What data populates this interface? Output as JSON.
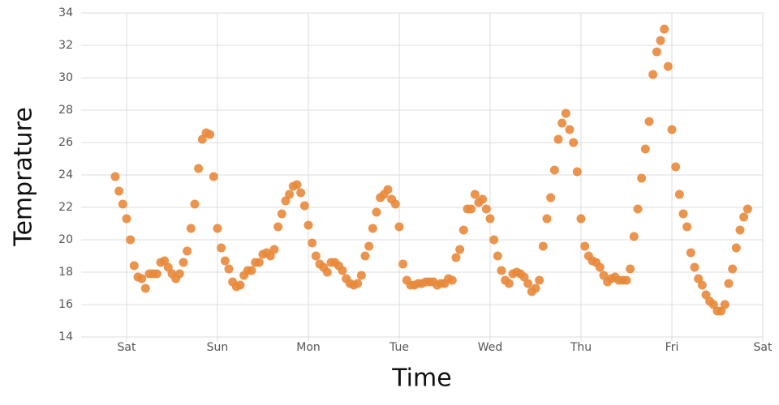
{
  "chart_data": {
    "type": "scatter",
    "x_label": "Time",
    "y_label": "Temprature",
    "xlim": [
      -12,
      168
    ],
    "ylim": [
      14,
      34
    ],
    "xticks": [
      {
        "value": 0,
        "label": "Sat"
      },
      {
        "value": 24,
        "label": "Sun"
      },
      {
        "value": 48,
        "label": "Mon"
      },
      {
        "value": 72,
        "label": "Tue"
      },
      {
        "value": 96,
        "label": "Wed"
      },
      {
        "value": 120,
        "label": "Thu"
      },
      {
        "value": 144,
        "label": "Fri"
      },
      {
        "value": 168,
        "label": "Sat"
      }
    ],
    "yticks": [
      14,
      16,
      18,
      20,
      22,
      24,
      26,
      28,
      30,
      32,
      34
    ],
    "grid": true,
    "color": "#e8883a",
    "x": [
      -3,
      -2,
      -1,
      0,
      1,
      2,
      3,
      4,
      5,
      6,
      7,
      8,
      9,
      10,
      11,
      12,
      13,
      14,
      15,
      16,
      17,
      18,
      19,
      20,
      21,
      22,
      23,
      24,
      25,
      26,
      27,
      28,
      29,
      30,
      31,
      32,
      33,
      34,
      35,
      36,
      37,
      38,
      39,
      40,
      41,
      42,
      43,
      44,
      45,
      46,
      47,
      48,
      49,
      50,
      51,
      52,
      53,
      54,
      55,
      56,
      57,
      58,
      59,
      60,
      61,
      62,
      63,
      64,
      65,
      66,
      67,
      68,
      69,
      70,
      71,
      72,
      73,
      74,
      75,
      76,
      77,
      78,
      79,
      80,
      81,
      82,
      83,
      84,
      85,
      86,
      87,
      88,
      89,
      90,
      91,
      92,
      93,
      94,
      95,
      96,
      97,
      98,
      99,
      100,
      101,
      102,
      103,
      104,
      105,
      106,
      107,
      108,
      109,
      110,
      111,
      112,
      113,
      114,
      115,
      116,
      117,
      118,
      119,
      120,
      121,
      122,
      123,
      124,
      125,
      126,
      127,
      128,
      129,
      130,
      131,
      132,
      133,
      134,
      135,
      136,
      137,
      138,
      139,
      140,
      141,
      142,
      143,
      144,
      145,
      146,
      147,
      148,
      149,
      150,
      151,
      152,
      153,
      154,
      155,
      156,
      157,
      158,
      159,
      160,
      161,
      162,
      163,
      164
    ],
    "values": [
      23.9,
      23.0,
      22.2,
      21.3,
      20.0,
      18.4,
      17.7,
      17.6,
      17.0,
      17.9,
      17.9,
      17.9,
      18.6,
      18.7,
      18.3,
      17.9,
      17.6,
      17.9,
      18.6,
      19.3,
      20.7,
      22.2,
      24.4,
      26.2,
      26.6,
      26.5,
      23.9,
      20.7,
      19.5,
      18.7,
      18.2,
      17.4,
      17.1,
      17.2,
      17.8,
      18.1,
      18.1,
      18.6,
      18.6,
      19.1,
      19.2,
      19.0,
      19.4,
      20.8,
      21.6,
      22.4,
      22.8,
      23.3,
      23.4,
      22.9,
      22.1,
      20.9,
      19.8,
      19.0,
      18.5,
      18.3,
      18.0,
      18.6,
      18.6,
      18.4,
      18.1,
      17.6,
      17.3,
      17.2,
      17.3,
      17.8,
      19.0,
      19.6,
      20.7,
      21.7,
      22.6,
      22.8,
      23.1,
      22.5,
      22.2,
      20.8,
      18.5,
      17.5,
      17.2,
      17.2,
      17.3,
      17.3,
      17.4,
      17.4,
      17.4,
      17.2,
      17.3,
      17.3,
      17.6,
      17.5,
      18.9,
      19.4,
      20.6,
      21.9,
      21.9,
      22.8,
      22.3,
      22.5,
      21.9,
      21.3,
      20.0,
      19.0,
      18.1,
      17.5,
      17.3,
      17.9,
      18.0,
      17.9,
      17.7,
      17.3,
      16.8,
      17.0,
      17.5,
      19.6,
      21.3,
      22.6,
      24.3,
      26.2,
      27.2,
      27.8,
      26.8,
      26.0,
      24.2,
      21.3,
      19.6,
      19.0,
      18.7,
      18.6,
      18.3,
      17.8,
      17.4,
      17.6,
      17.7,
      17.5,
      17.5,
      17.5,
      18.2,
      20.2,
      21.9,
      23.8,
      25.6,
      27.3,
      30.2,
      31.6,
      32.3,
      33.0,
      30.7,
      26.8,
      24.5,
      22.8,
      21.6,
      20.8,
      19.2,
      18.3,
      17.6,
      17.2,
      16.6,
      16.2,
      16.0,
      15.6,
      15.6,
      16.0,
      17.3,
      18.2,
      19.5,
      20.6,
      21.4,
      21.9
    ]
  }
}
